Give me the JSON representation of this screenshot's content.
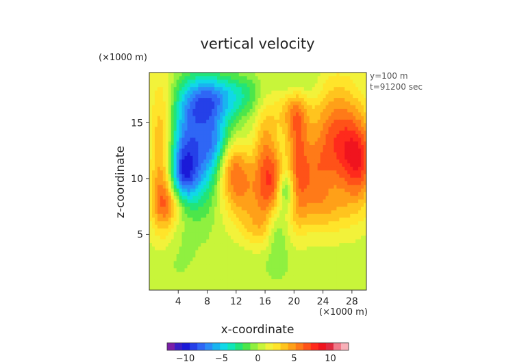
{
  "chart_data": {
    "type": "heatmap",
    "title": "vertical velocity",
    "xlabel": "x-coordinate",
    "ylabel": "z-coordinate",
    "x_unit": "(×1000 m)",
    "z_unit": "(×1000 m)",
    "info": [
      "y=100 m",
      "t=91200 sec"
    ],
    "xlim": [
      0,
      30
    ],
    "ylim": [
      0,
      19.5
    ],
    "xticks": [
      4,
      8,
      12,
      16,
      20,
      24,
      28
    ],
    "yticks": [
      5,
      10,
      15
    ],
    "grid": false,
    "colorbar": {
      "range": [
        -12.5,
        12.5
      ],
      "ticks": [
        -10,
        -5,
        0,
        5,
        10
      ],
      "colors": [
        "#7a1fa8",
        "#3a1fc6",
        "#1a1ad8",
        "#2540e8",
        "#2f66f5",
        "#2b8cf8",
        "#19b4f0",
        "#10d8e8",
        "#10e6b8",
        "#22e478",
        "#4ce64a",
        "#8ff040",
        "#c8f53a",
        "#f2f23a",
        "#ffe42a",
        "#ffc41e",
        "#ffa018",
        "#ff7a18",
        "#ff5218",
        "#ff2a1c",
        "#f0141e",
        "#e02a40",
        "#f07a8a",
        "#f8b0b8"
      ]
    },
    "background_value": 0.6,
    "features": [
      {
        "x": 6.0,
        "z": 12.5,
        "sx": 3.3,
        "sz": 3.6,
        "v": -8.5
      },
      {
        "x": 4.6,
        "z": 10.0,
        "sx": 1.3,
        "sz": 1.8,
        "v": -4.5
      },
      {
        "x": 7.8,
        "z": 17.0,
        "sx": 2.4,
        "sz": 1.6,
        "v": -5.5
      },
      {
        "x": 9.2,
        "z": 13.0,
        "sx": 1.2,
        "sz": 1.6,
        "v": -2.5
      },
      {
        "x": 12.5,
        "z": 17.5,
        "sx": 2.6,
        "sz": 1.3,
        "v": -3.0
      },
      {
        "x": 17.5,
        "z": 6.8,
        "sx": 1.0,
        "sz": 2.2,
        "v": -3.5
      },
      {
        "x": 18.8,
        "z": 9.0,
        "sx": 0.8,
        "sz": 1.2,
        "v": -4.0
      },
      {
        "x": 20.5,
        "z": 18.5,
        "sx": 1.8,
        "sz": 1.2,
        "v": -2.5
      },
      {
        "x": 1.8,
        "z": 12.0,
        "sx": 1.3,
        "sz": 4.5,
        "v": 7.0
      },
      {
        "x": 3.0,
        "z": 7.8,
        "sx": 1.8,
        "sz": 1.4,
        "v": 4.0
      },
      {
        "x": 12.3,
        "z": 9.2,
        "sx": 2.2,
        "sz": 2.2,
        "v": 5.0
      },
      {
        "x": 11.3,
        "z": 11.5,
        "sx": 1.5,
        "sz": 1.6,
        "v": 3.5
      },
      {
        "x": 16.0,
        "z": 11.0,
        "sx": 1.1,
        "sz": 4.0,
        "v": 4.5
      },
      {
        "x": 17.5,
        "z": 9.0,
        "sx": 1.0,
        "sz": 2.2,
        "v": 5.5
      },
      {
        "x": 20.5,
        "z": 12.0,
        "sx": 1.0,
        "sz": 4.5,
        "v": 4.0
      },
      {
        "x": 19.5,
        "z": 16.0,
        "sx": 1.8,
        "sz": 1.8,
        "v": 3.0
      },
      {
        "x": 22.5,
        "z": 10.0,
        "sx": 1.8,
        "sz": 2.4,
        "v": 3.5
      },
      {
        "x": 26.0,
        "z": 13.5,
        "sx": 2.5,
        "sz": 3.5,
        "v": 6.0
      },
      {
        "x": 29.0,
        "z": 11.5,
        "sx": 1.6,
        "sz": 2.6,
        "v": 5.5
      },
      {
        "x": 14.5,
        "z": 5.5,
        "sx": 1.5,
        "sz": 1.5,
        "v": 2.0
      },
      {
        "x": 16.5,
        "z": 2.5,
        "sx": 3.0,
        "sz": 1.5,
        "v": -1.0
      },
      {
        "x": 24.5,
        "z": 7.0,
        "sx": 3.0,
        "sz": 1.5,
        "v": 2.0
      },
      {
        "x": 3.0,
        "z": 2.5,
        "sx": 2.5,
        "sz": 1.5,
        "v": -0.8
      }
    ]
  }
}
